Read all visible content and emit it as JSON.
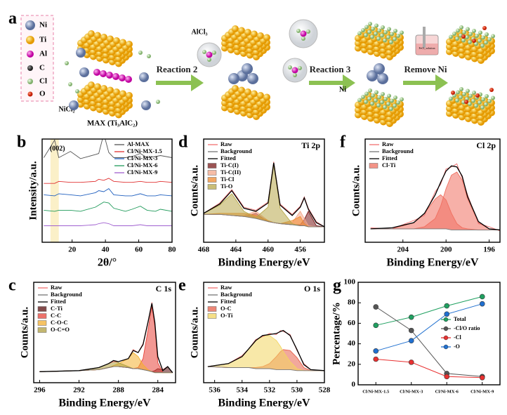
{
  "schematic": {
    "label": "a",
    "legend": [
      "Ni",
      "Ti",
      "Al",
      "C",
      "Cl",
      "O"
    ],
    "labels": {
      "nicl2": "NiCl₂",
      "max": "MAX (Ti₃AlC₂)",
      "alcl3": "AlCl₃",
      "ni": "Ni",
      "solution": "FeCl₃ solution"
    },
    "steps": [
      "Reaction 2",
      "Reaction 3",
      "Remove Ni"
    ]
  },
  "chart_data": [
    {
      "type": "line",
      "panel_label": "b",
      "xlabel": "2θ/°",
      "ylabel": "Intensity/a.u.",
      "annotation": "(002)",
      "highlight": [
        7,
        12
      ],
      "xlim": [
        2,
        80
      ],
      "xticks": [
        20,
        40,
        60,
        80
      ],
      "ylim": [
        0,
        10
      ],
      "legend": "upper right",
      "x": [
        3,
        9.5,
        12,
        19,
        25,
        34,
        36,
        39,
        42,
        45,
        52,
        56,
        61,
        65,
        70,
        73,
        80
      ],
      "series": [
        {
          "name": "Al-MAX",
          "color": "#555555",
          "values": [
            8.2,
            9.9,
            8.2,
            8.8,
            8.1,
            8.5,
            8.6,
            10.5,
            8.7,
            8.2,
            8.2,
            8.3,
            8.6,
            8.2,
            8.3,
            8.4,
            8.2
          ]
        },
        {
          "name": "Cl/Ni-MX-1.5",
          "color": "#e03030",
          "values": [
            5.7,
            5.7,
            5.9,
            5.8,
            5.8,
            5.9,
            6.1,
            6.0,
            6.2,
            5.9,
            5.8,
            5.8,
            5.9,
            5.8,
            5.8,
            5.9,
            5.8
          ]
        },
        {
          "name": "Cl/Ni-MX-3",
          "color": "#1f5fbf",
          "values": [
            4.6,
            4.5,
            4.7,
            4.6,
            4.5,
            4.8,
            5.0,
            4.9,
            5.2,
            4.6,
            4.5,
            4.5,
            4.7,
            4.5,
            4.5,
            4.6,
            4.5
          ]
        },
        {
          "name": "Cl/Ni-MX-6",
          "color": "#1f9a5a",
          "values": [
            3.1,
            3.0,
            3.1,
            3.1,
            3.0,
            3.4,
            3.6,
            3.9,
            3.8,
            3.3,
            3.0,
            3.2,
            3.5,
            3.1,
            3.0,
            3.2,
            3.0
          ]
        },
        {
          "name": "Cl/Ni-MX-9",
          "color": "#a060d0",
          "values": [
            1.6,
            1.6,
            1.6,
            1.6,
            1.6,
            1.7,
            1.8,
            1.9,
            1.8,
            1.6,
            1.6,
            1.6,
            1.7,
            1.6,
            1.6,
            1.6,
            1.6
          ]
        }
      ]
    },
    {
      "type": "line",
      "panel_label": "d",
      "title": "Ti 2p",
      "xlabel": "Binding Energy/eV",
      "ylabel": "Counts/a.u.",
      "xlim": [
        468,
        453
      ],
      "xticks": [
        468,
        464,
        460,
        456
      ],
      "ylim": [
        0,
        10
      ],
      "legend": "upper left",
      "x": [
        468,
        466,
        464.5,
        463,
        461.5,
        460,
        459.3,
        458.5,
        457,
        456,
        455.5,
        455,
        454,
        453
      ],
      "series": [
        {
          "name": "Raw",
          "color": "#f07070",
          "values": [
            2.8,
            3.8,
            5.1,
            3.4,
            3.1,
            3.9,
            7.8,
            3.7,
            2.7,
            3.5,
            4.4,
            3.3,
            2.0,
            1.5
          ]
        },
        {
          "name": "Background",
          "color": "#777777",
          "values": [
            2.7,
            2.7,
            2.6,
            2.5,
            2.3,
            2.0,
            1.9,
            1.8,
            1.7,
            1.6,
            1.6,
            1.5,
            1.5,
            1.5
          ]
        },
        {
          "name": "Fitted",
          "color": "#000000",
          "values": [
            2.8,
            3.7,
            5.0,
            3.3,
            3.0,
            3.8,
            7.7,
            3.6,
            2.6,
            3.4,
            4.3,
            3.2,
            1.9,
            1.5
          ]
        },
        {
          "name": "Ti-C(I)",
          "color": "#7a1a1a",
          "area": true,
          "values": [
            2.7,
            2.7,
            2.6,
            2.5,
            2.8,
            2.0,
            1.9,
            1.8,
            1.7,
            1.7,
            2.2,
            3.0,
            1.6,
            1.5
          ]
        },
        {
          "name": "Ti-C(II)",
          "color": "#f4a78a",
          "area": true,
          "values": [
            2.7,
            2.7,
            2.6,
            2.6,
            3.0,
            2.1,
            1.9,
            1.8,
            1.9,
            3.0,
            2.3,
            1.6,
            1.5,
            1.5
          ]
        },
        {
          "name": "Ti-Cl",
          "color": "#f08a30",
          "area": true,
          "values": [
            2.7,
            2.8,
            2.8,
            2.8,
            2.6,
            2.1,
            1.9,
            1.8,
            2.1,
            2.5,
            1.8,
            1.5,
            1.5,
            1.5
          ]
        },
        {
          "name": "Ti-O",
          "color": "#b8a84a",
          "area": true,
          "values": [
            2.8,
            3.6,
            4.7,
            3.0,
            2.4,
            3.4,
            7.5,
            3.3,
            1.8,
            1.6,
            1.6,
            1.5,
            1.5,
            1.5
          ]
        }
      ]
    },
    {
      "type": "line",
      "panel_label": "f",
      "title": "Cl 2p",
      "xlabel": "Binding Energy/eV",
      "ylabel": "Counts/a.u.",
      "xlim": [
        207.5,
        195
      ],
      "xticks": [
        204,
        200,
        196
      ],
      "ylim": [
        0,
        10
      ],
      "legend": "upper left",
      "x": [
        207,
        205,
        203,
        202,
        201,
        200.5,
        200,
        199.5,
        199,
        198.5,
        198,
        197,
        196,
        195
      ],
      "series": [
        {
          "name": "Raw",
          "color": "#f07070",
          "values": [
            1.4,
            1.3,
            2.1,
            2.6,
            4.9,
            5.6,
            7.1,
            7.3,
            7.6,
            6.2,
            4.6,
            1.8,
            1.5,
            1.1
          ]
        },
        {
          "name": "Background",
          "color": "#777777",
          "values": [
            1.3,
            1.3,
            1.3,
            1.3,
            1.3,
            1.3,
            1.3,
            1.2,
            1.2,
            1.2,
            1.2,
            1.2,
            1.2,
            1.2
          ]
        },
        {
          "name": "Fitted",
          "color": "#000000",
          "values": [
            1.3,
            1.4,
            1.9,
            2.8,
            4.6,
            5.8,
            6.9,
            7.4,
            7.3,
            6.4,
            4.4,
            2.0,
            1.3,
            1.2
          ]
        },
        {
          "name": "Cl-Ti",
          "color": "#f07060",
          "area": true,
          "values": [
            1.3,
            1.3,
            1.3,
            1.5,
            2.3,
            3.5,
            5.2,
            6.5,
            6.8,
            6.0,
            4.2,
            1.9,
            1.3,
            1.2
          ]
        },
        {
          "name": null,
          "color": "#f07060",
          "area": true,
          "values": [
            1.3,
            1.3,
            1.9,
            2.8,
            4.2,
            4.6,
            4.1,
            2.8,
            1.8,
            1.4,
            1.3,
            1.2,
            1.2,
            1.2
          ]
        }
      ]
    },
    {
      "type": "line",
      "panel_label": "c",
      "title": "C 1s",
      "xlabel": "Binding Energy/eV",
      "ylabel": "Counts/a.u.",
      "xlim": [
        296.6,
        282.2
      ],
      "xticks": [
        296,
        292,
        288,
        284
      ],
      "ylim": [
        0,
        10
      ],
      "legend": "upper left",
      "x": [
        296,
        292,
        290,
        289,
        288.5,
        288,
        287,
        286.5,
        286,
        285.5,
        285,
        284.6,
        284.3,
        284,
        283.5,
        283,
        282.5
      ],
      "series": [
        {
          "name": "Raw",
          "color": "#f07070",
          "values": [
            1.1,
            1.2,
            1.5,
            1.9,
            2.1,
            2.1,
            2.4,
            3.3,
            3.0,
            3.9,
            6.1,
            8.0,
            5.9,
            2.5,
            1.3,
            1.6,
            1.0
          ]
        },
        {
          "name": "Background",
          "color": "#777777",
          "values": [
            1.1,
            1.2,
            1.3,
            1.5,
            1.6,
            1.6,
            1.5,
            1.4,
            1.4,
            1.3,
            1.2,
            1.1,
            1.0,
            1.0,
            1.0,
            1.0,
            1.0
          ]
        },
        {
          "name": "Fitted",
          "color": "#000000",
          "values": [
            1.1,
            1.2,
            1.5,
            1.9,
            2.2,
            2.1,
            2.4,
            3.2,
            3.0,
            3.8,
            6.0,
            7.9,
            6.0,
            2.6,
            1.2,
            1.6,
            1.0
          ]
        },
        {
          "name": "C-Ti",
          "color": "#5a1010",
          "area": true,
          "values": [
            1.1,
            1.2,
            1.3,
            1.5,
            1.6,
            1.6,
            1.5,
            1.4,
            1.4,
            1.3,
            1.2,
            1.1,
            1.2,
            1.4,
            1.3,
            1.6,
            1.0
          ]
        },
        {
          "name": "C-C",
          "color": "#e8433a",
          "area": true,
          "values": [
            1.1,
            1.2,
            1.3,
            1.5,
            1.6,
            1.6,
            1.5,
            1.4,
            1.5,
            2.4,
            5.2,
            7.6,
            5.6,
            2.0,
            1.0,
            1.0,
            1.0
          ]
        },
        {
          "name": "C-O-C",
          "color": "#f4b030",
          "area": true,
          "values": [
            1.1,
            1.2,
            1.3,
            1.5,
            1.7,
            1.9,
            2.4,
            3.0,
            2.6,
            1.8,
            1.3,
            1.1,
            1.0,
            1.0,
            1.0,
            1.0,
            1.0
          ]
        },
        {
          "name": "O-C=O",
          "color": "#b0a040",
          "area": true,
          "values": [
            1.1,
            1.2,
            1.5,
            1.9,
            2.1,
            2.0,
            1.6,
            1.4,
            1.4,
            1.3,
            1.2,
            1.1,
            1.0,
            1.0,
            1.0,
            1.0,
            1.0
          ]
        }
      ]
    },
    {
      "type": "line",
      "panel_label": "e",
      "title": "O 1s",
      "xlabel": "Binding Energy/eV",
      "ylabel": "Counts/a.u.",
      "xlim": [
        536.8,
        528
      ],
      "xticks": [
        536,
        534,
        532,
        530,
        528
      ],
      "ylim": [
        0,
        10
      ],
      "legend": "upper left",
      "x": [
        536.5,
        535,
        534,
        533.5,
        533,
        532.5,
        532,
        531.5,
        531.2,
        531,
        530.5,
        530,
        529.5,
        529,
        528
      ],
      "series": [
        {
          "name": "Raw",
          "color": "#f07070",
          "values": [
            1.6,
            1.9,
            2.7,
            3.4,
            4.3,
            4.6,
            4.9,
            4.8,
            5.2,
            5.1,
            4.8,
            3.2,
            1.9,
            1.3,
            1.2
          ]
        },
        {
          "name": "Background",
          "color": "#777777",
          "values": [
            1.6,
            1.5,
            1.5,
            1.5,
            1.4,
            1.4,
            1.4,
            1.3,
            1.3,
            1.3,
            1.3,
            1.2,
            1.2,
            1.2,
            1.2
          ]
        },
        {
          "name": "Fitted",
          "color": "#000000",
          "values": [
            1.6,
            1.9,
            2.6,
            3.4,
            4.2,
            4.7,
            4.8,
            4.9,
            5.1,
            5.2,
            4.7,
            3.3,
            1.8,
            1.3,
            1.2
          ]
        },
        {
          "name": "O-C",
          "color": "#e8604a",
          "area": true,
          "values": [
            1.6,
            1.5,
            1.5,
            1.5,
            1.5,
            1.6,
            1.9,
            2.6,
            3.1,
            3.3,
            3.2,
            2.5,
            1.5,
            1.2,
            1.2
          ]
        },
        {
          "name": "O-Ti",
          "color": "#f3d560",
          "area": true,
          "values": [
            1.6,
            1.9,
            2.6,
            3.4,
            4.2,
            4.6,
            4.7,
            4.2,
            3.6,
            3.1,
            2.1,
            1.4,
            1.2,
            1.2,
            1.2
          ]
        }
      ]
    },
    {
      "type": "line",
      "panel_label": "g",
      "ylabel": "Percentage/%",
      "categories": [
        "Cl/Ni-MX-1.5",
        "Cl/Ni-MX-3",
        "Cl/Ni-MX-6",
        "Cl/Ni-MX-9"
      ],
      "ylim": [
        0,
        100
      ],
      "yticks": [
        0,
        20,
        40,
        60,
        80,
        100
      ],
      "legend": "center right",
      "series": [
        {
          "name": "Total",
          "color": "#1fa060",
          "values": [
            58,
            66,
            77,
            86
          ]
        },
        {
          "name": "-Cl/O ratio",
          "color": "#555555",
          "values": [
            76,
            53,
            11,
            8
          ]
        },
        {
          "name": "-Cl",
          "color": "#e83030",
          "values": [
            25,
            22,
            8,
            7
          ]
        },
        {
          "name": "-O",
          "color": "#2070d0",
          "values": [
            33,
            43,
            69,
            79
          ]
        }
      ]
    }
  ]
}
